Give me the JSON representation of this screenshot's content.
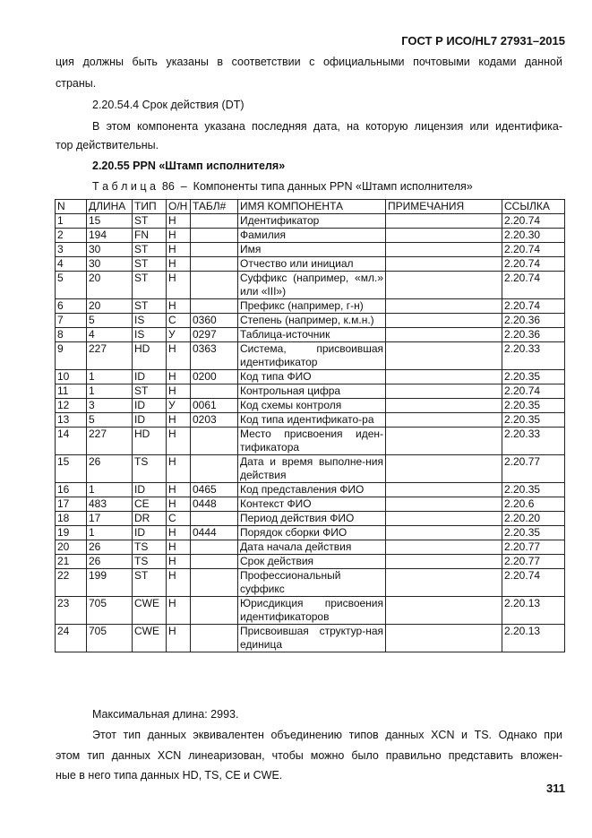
{
  "header": "ГОСТ Р ИСО/HL7 27931–2015",
  "para1_line1": "ция должны быть указаны в соответствии с официальными почтовыми кодами данной",
  "para1_line2": "страны.",
  "section_2054_4": "2.20.54.4 Срок действия (DT)",
  "para2_line1": "В этом компонента указана последняя дата, на которую лицензия или идентифика-",
  "para2_line2": "тор действительны.",
  "section_2055": "2.20.55 PPN «Штамп исполнителя»",
  "table_caption": "Т а б л и ц а  86  –  Компоненты типа данных PPN «Штамп исполнителя»",
  "table": {
    "headers": [
      "N",
      "ДЛИНА",
      "ТИП",
      "О/Н",
      "ТАБЛ#",
      "ИМЯ КОМПОНЕНТА",
      "ПРИМЕЧАНИЯ",
      "ССЫЛКА"
    ],
    "rows": [
      [
        "1",
        "15",
        "ST",
        "Н",
        "",
        "Идентификатор",
        "",
        "2.20.74"
      ],
      [
        "2",
        "194",
        "FN",
        "Н",
        "",
        "Фамилия",
        "",
        "2.20.30"
      ],
      [
        "3",
        "30",
        "ST",
        "Н",
        "",
        "Имя",
        "",
        "2.20.74"
      ],
      [
        "4",
        "30",
        "ST",
        "Н",
        "",
        "Отчество или инициал",
        "",
        "2.20.74"
      ],
      [
        "5",
        "20",
        "ST",
        "Н",
        "",
        "Суффикс (например, «мл.» или «III»)",
        "",
        "2.20.74"
      ],
      [
        "6",
        "20",
        "ST",
        "Н",
        "",
        "Префикс (например, г-н)",
        "",
        "2.20.74"
      ],
      [
        "7",
        "5",
        "IS",
        "С",
        "0360",
        "Степень (например, к.м.н.)",
        "",
        "2.20.36"
      ],
      [
        "8",
        "4",
        "IS",
        "У",
        "0297",
        "Таблица-источник",
        "",
        "2.20.36"
      ],
      [
        "9",
        "227",
        "HD",
        "Н",
        "0363",
        "Система, присвоившая идентификатор",
        "",
        "2.20.33"
      ],
      [
        "10",
        "1",
        "ID",
        "Н",
        "0200",
        "Код типа ФИО",
        "",
        "2.20.35"
      ],
      [
        "11",
        "1",
        "ST",
        "Н",
        "",
        "Контрольная цифра",
        "",
        "2.20.74"
      ],
      [
        "12",
        "3",
        "ID",
        "У",
        "0061",
        "Код схемы контроля",
        "",
        "2.20.35"
      ],
      [
        "13",
        "5",
        "ID",
        "Н",
        "0203",
        "Код типа идентификато-ра",
        "",
        "2.20.35"
      ],
      [
        "14",
        "227",
        "HD",
        "Н",
        "",
        "Место присвоения иден-тификатора",
        "",
        "2.20.33"
      ],
      [
        "15",
        "26",
        "TS",
        "Н",
        "",
        "Дата и время выполне-ния действия",
        "",
        "2.20.77"
      ],
      [
        "16",
        "1",
        "ID",
        "Н",
        "0465",
        "Код представления ФИО",
        "",
        "2.20.35"
      ],
      [
        "17",
        "483",
        "CE",
        "Н",
        "0448",
        "Контекст ФИО",
        "",
        "2.20.6"
      ],
      [
        "18",
        "17",
        "DR",
        "С",
        "",
        "Период действия ФИО",
        "",
        "2.20.20"
      ],
      [
        "19",
        "1",
        "ID",
        "Н",
        "0444",
        "Порядок сборки ФИО",
        "",
        "2.20.35"
      ],
      [
        "20",
        "26",
        "TS",
        "Н",
        "",
        "Дата начала действия",
        "",
        "2.20.77"
      ],
      [
        "21",
        "26",
        "TS",
        "Н",
        "",
        "Срок действия",
        "",
        "2.20.77"
      ],
      [
        "22",
        "199",
        "ST",
        "Н",
        "",
        "Профессиональный суффикс",
        "",
        "2.20.74"
      ],
      [
        "23",
        "705",
        "CWE",
        "Н",
        "",
        "Юрисдикция присвоения идентификаторов",
        "",
        "2.20.13"
      ],
      [
        "24",
        "705",
        "CWE",
        "Н",
        "",
        "Присвоившая структур-ная единица",
        "",
        "2.20.13"
      ]
    ]
  },
  "max_length": "Максимальная длина: 2993.",
  "para3_line1": "Этот тип данных эквивалентен объединению типов данных XCN и TS. Однако при",
  "para3_line2": "этом тип данных XCN линеаризован, чтобы можно было правильно представить вложен-",
  "para3_line3": "ные в него типа данных HD, TS, CE и CWE.",
  "page_number": "311"
}
